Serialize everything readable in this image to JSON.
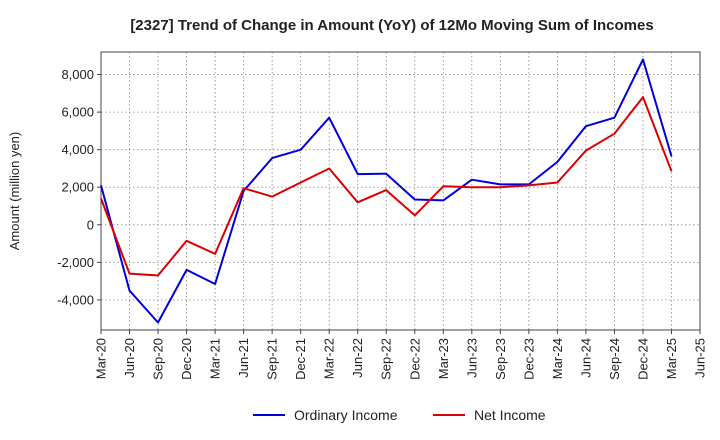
{
  "chart_data": {
    "type": "line",
    "title": "[2327]  Trend of Change in Amount (YoY) of 12Mo Moving Sum of Incomes",
    "xlabel": "",
    "ylabel": "Amount (million yen)",
    "categories": [
      "Mar-20",
      "Jun-20",
      "Sep-20",
      "Dec-20",
      "Mar-21",
      "Jun-21",
      "Sep-21",
      "Dec-21",
      "Mar-22",
      "Jun-22",
      "Sep-22",
      "Dec-22",
      "Mar-23",
      "Jun-23",
      "Sep-23",
      "Dec-23",
      "Mar-24",
      "Jun-24",
      "Sep-24",
      "Dec-24",
      "Mar-25",
      "Jun-25"
    ],
    "ylim": [
      -5600,
      9200
    ],
    "yticks": [
      -4000,
      -2000,
      0,
      2000,
      4000,
      6000,
      8000
    ],
    "ytick_labels": [
      "-4,000",
      "-2,000",
      "0",
      "2,000",
      "4,000",
      "6,000",
      "8,000"
    ],
    "grid": true,
    "legend_position": "bottom",
    "series": [
      {
        "name": "Ordinary Income",
        "color": "#0000dd",
        "values": [
          2100,
          -3500,
          -5200,
          -2400,
          -3150,
          1800,
          3550,
          4000,
          5700,
          2700,
          2720,
          1350,
          1300,
          2400,
          2150,
          2150,
          3350,
          5250,
          5700,
          8800,
          3650,
          null
        ]
      },
      {
        "name": "Net Income",
        "color": "#dd0000",
        "values": [
          1400,
          -2600,
          -2700,
          -850,
          -1550,
          1950,
          1500,
          2250,
          3000,
          1200,
          1850,
          500,
          2050,
          2000,
          2000,
          2100,
          2250,
          3950,
          4850,
          6800,
          2850,
          null
        ]
      }
    ]
  }
}
